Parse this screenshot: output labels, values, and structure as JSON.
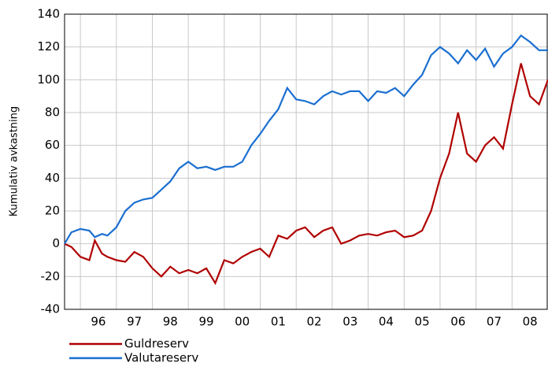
{
  "chart_data": {
    "type": "line",
    "y_label": "Kumulativ avkastning",
    "x": [
      1995.56,
      1995.75,
      1996.0,
      1996.25,
      1996.4,
      1996.6,
      1996.75,
      1997.0,
      1997.25,
      1997.5,
      1997.75,
      1998.0,
      1998.25,
      1998.5,
      1998.75,
      1999.0,
      1999.25,
      1999.5,
      1999.75,
      2000.0,
      2000.25,
      2000.5,
      2000.75,
      2001.0,
      2001.25,
      2001.5,
      2001.75,
      2002.0,
      2002.25,
      2002.5,
      2002.75,
      2003.0,
      2003.25,
      2003.5,
      2003.75,
      2004.0,
      2004.25,
      2004.5,
      2004.75,
      2005.0,
      2005.25,
      2005.5,
      2005.75,
      2006.0,
      2006.25,
      2006.5,
      2006.75,
      2007.0,
      2007.25,
      2007.5,
      2007.75,
      2008.0,
      2008.25,
      2008.5,
      2008.75,
      2009.0
    ],
    "series": [
      {
        "name": "Guldreserv",
        "color": "#b00000",
        "values": [
          0,
          -2,
          -8,
          -10,
          2,
          -6,
          -8,
          -10,
          -11,
          -5,
          -8,
          -15,
          -20,
          -14,
          -18,
          -16,
          -18,
          -15,
          -24,
          -10,
          -12,
          -8,
          -5,
          -3,
          -8,
          5,
          3,
          8,
          10,
          4,
          8,
          10,
          0,
          2,
          5,
          6,
          5,
          7,
          8,
          4,
          5,
          8,
          20,
          40,
          55,
          80,
          55,
          50,
          60,
          65,
          58,
          85,
          110,
          90,
          85,
          100
        ]
      },
      {
        "name": "Valutareserv",
        "color": "#1a6fd0",
        "values": [
          0,
          7,
          9,
          8,
          4,
          6,
          5,
          10,
          20,
          25,
          27,
          28,
          33,
          38,
          46,
          50,
          46,
          47,
          45,
          47,
          47,
          50,
          60,
          67,
          75,
          82,
          95,
          88,
          87,
          85,
          90,
          93,
          91,
          93,
          93,
          87,
          93,
          92,
          95,
          90,
          97,
          103,
          115,
          120,
          116,
          110,
          118,
          112,
          119,
          108,
          116,
          120,
          127,
          123,
          118,
          118
        ]
      }
    ],
    "xlim": [
      1995.56,
      2009.0
    ],
    "xticks": [
      {
        "value": 1996,
        "label": "96"
      },
      {
        "value": 1997,
        "label": "97"
      },
      {
        "value": 1998,
        "label": "98"
      },
      {
        "value": 1999,
        "label": "99"
      },
      {
        "value": 2000,
        "label": "00"
      },
      {
        "value": 2001,
        "label": "01"
      },
      {
        "value": 2002,
        "label": "02"
      },
      {
        "value": 2003,
        "label": "03"
      },
      {
        "value": 2004,
        "label": "04"
      },
      {
        "value": 2005,
        "label": "05"
      },
      {
        "value": 2006,
        "label": "06"
      },
      {
        "value": 2007,
        "label": "07"
      },
      {
        "value": 2008,
        "label": "08"
      }
    ],
    "ylim": [
      -40,
      140
    ],
    "yticks": [
      -40,
      -20,
      0,
      20,
      40,
      60,
      80,
      100,
      120,
      140
    ],
    "grid": true
  }
}
